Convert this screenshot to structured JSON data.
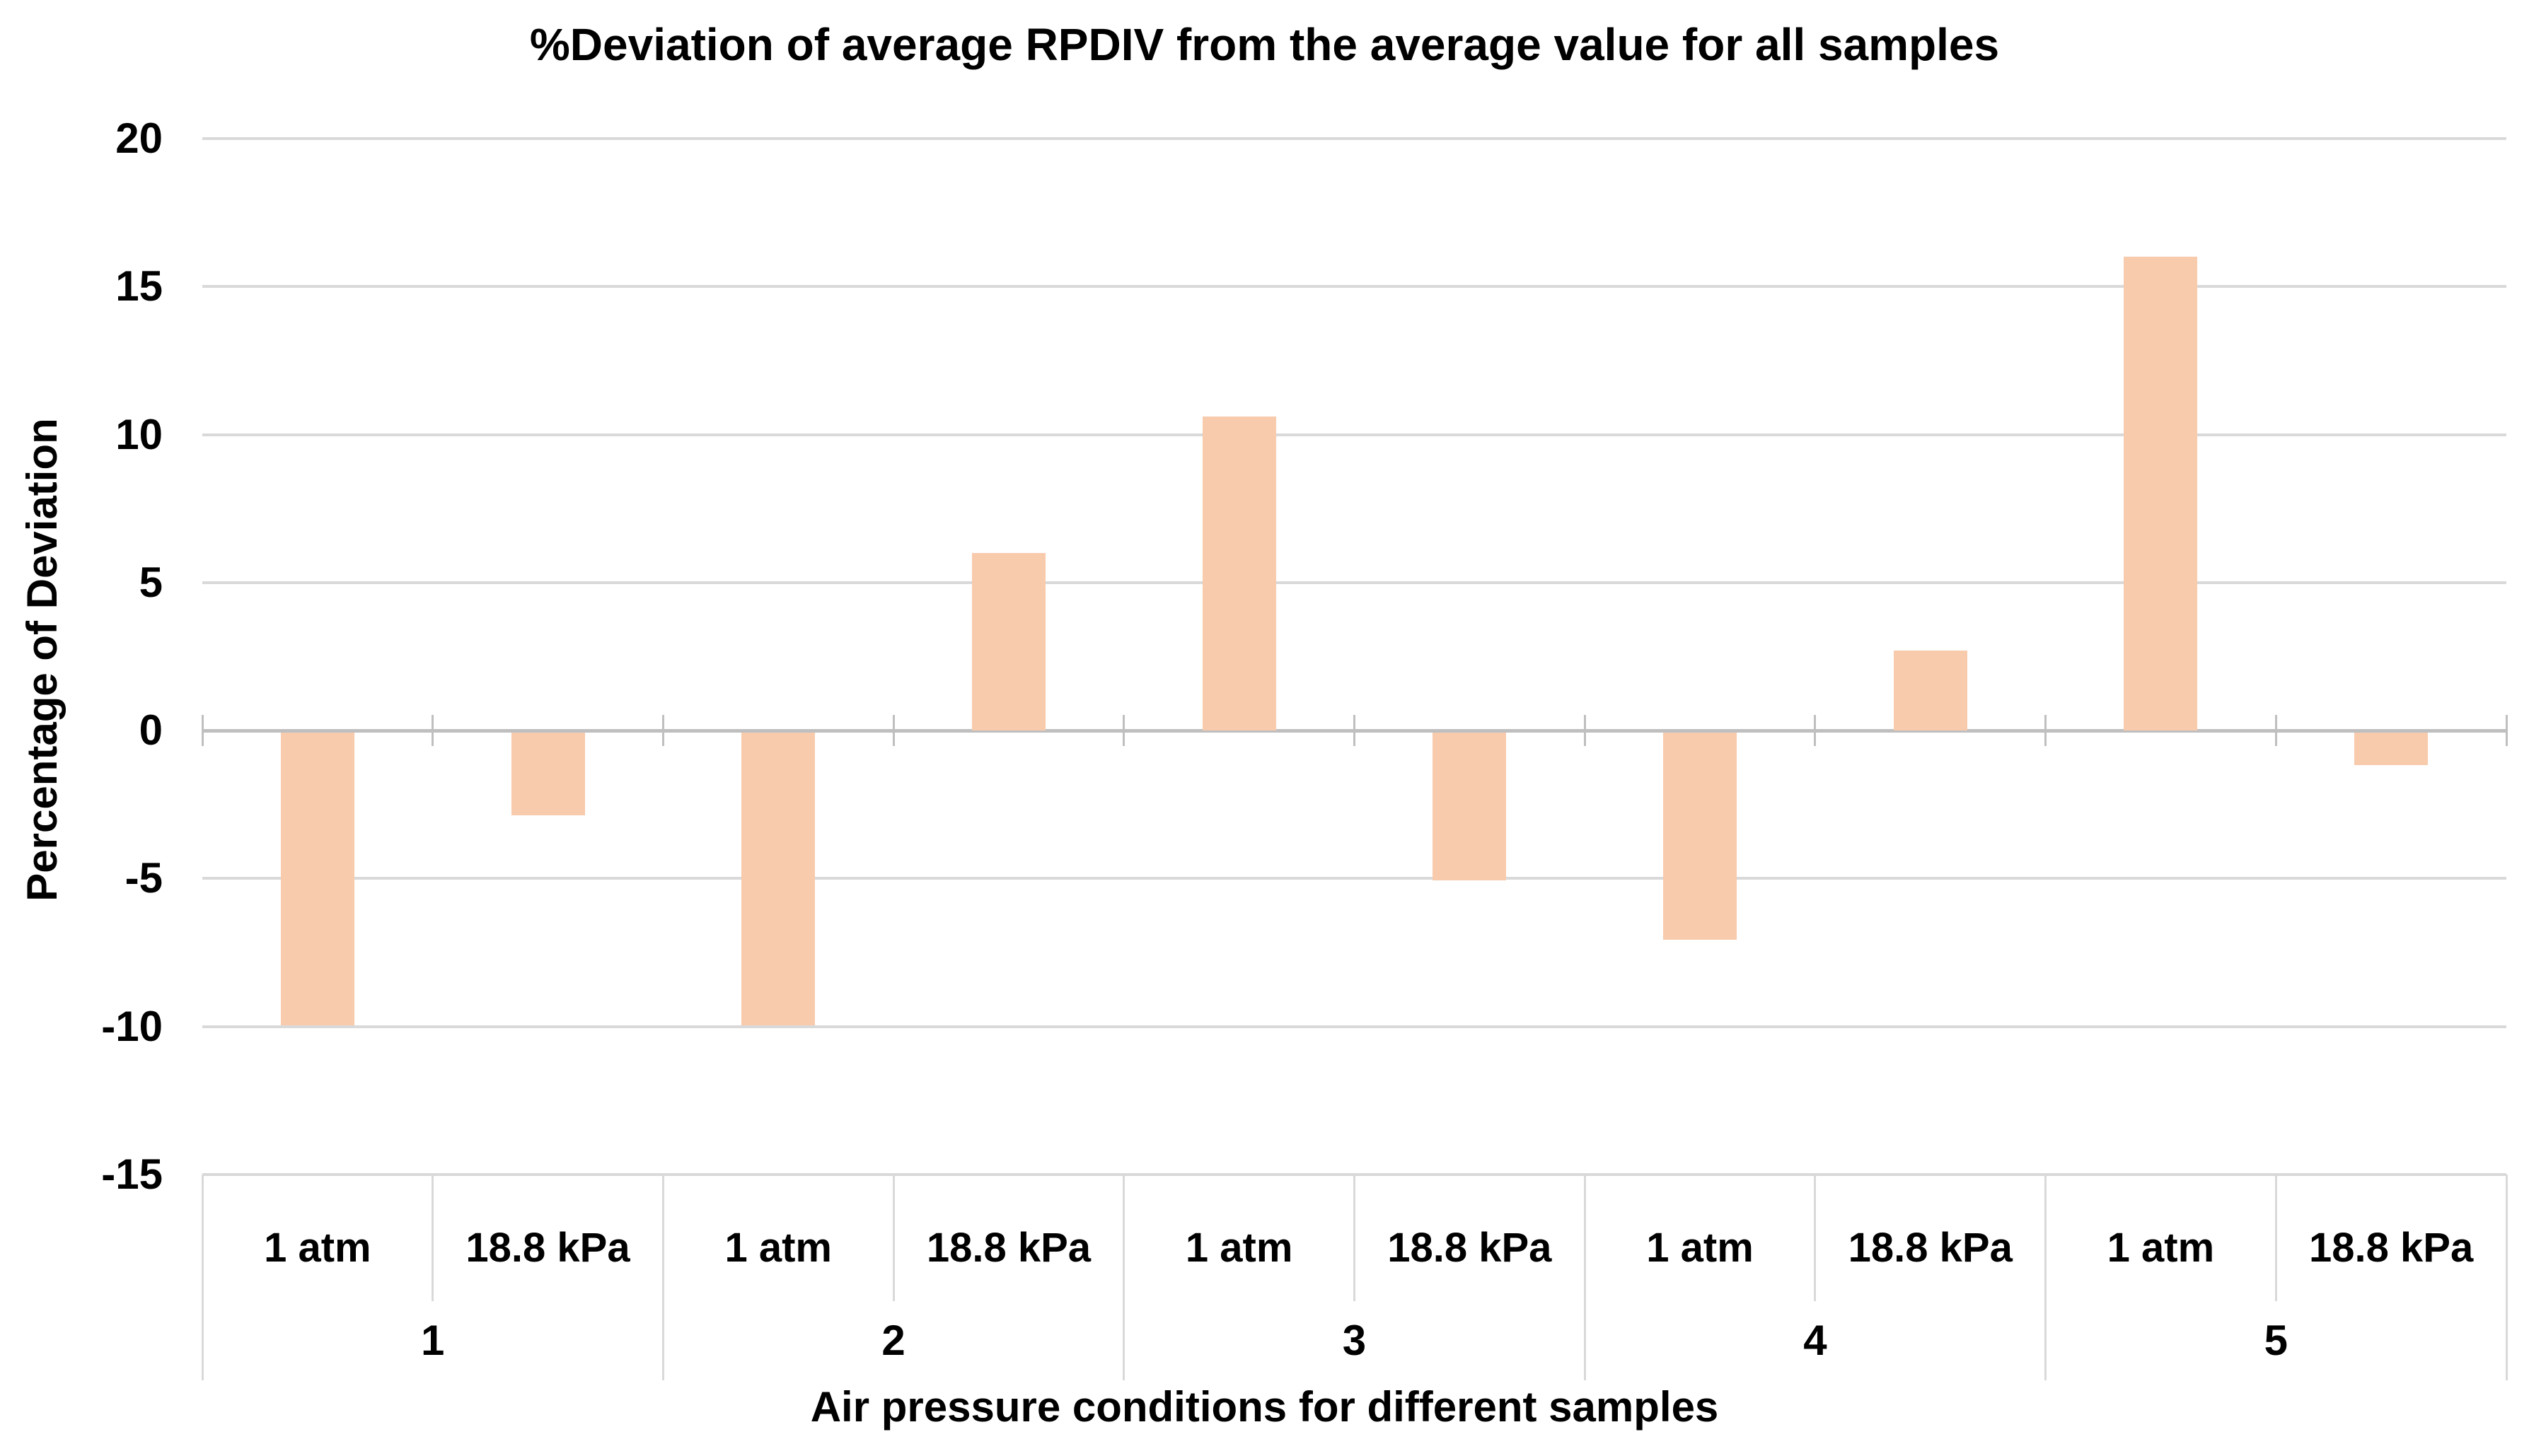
{
  "chart_data": {
    "type": "bar",
    "title": "%Deviation of average RPDIV from the average value for all samples",
    "ylabel": "Percentage of Deviation",
    "xlabel": "Air pressure conditions for different samples",
    "ylim": [
      -15,
      20
    ],
    "ytick_step": 5,
    "yticks": [
      20,
      15,
      10,
      5,
      0,
      -5,
      -10,
      -15
    ],
    "grid": true,
    "legend_position": "none",
    "categories_note": "two-level category axis: condition within sample group",
    "groups": [
      {
        "label": "1",
        "conditions": [
          "1 atm",
          "18.8 kPa"
        ],
        "values": [
          -9.9,
          -2.8
        ]
      },
      {
        "label": "2",
        "conditions": [
          "1 atm",
          "18.8 kPa"
        ],
        "values": [
          -9.9,
          6.0
        ]
      },
      {
        "label": "3",
        "conditions": [
          "1 atm",
          "18.8 kPa"
        ],
        "values": [
          10.6,
          -5.0
        ]
      },
      {
        "label": "4",
        "conditions": [
          "1 atm",
          "18.8 kPa"
        ],
        "values": [
          -7.0,
          2.7
        ]
      },
      {
        "label": "5",
        "conditions": [
          "1 atm",
          "18.8 kPa"
        ],
        "values": [
          16.0,
          -1.1
        ]
      }
    ],
    "colors": {
      "bar_fill": "#F8CBAD",
      "gridline": "#D9D9D9",
      "axis_line": "#BFBFBF",
      "text": "#000000",
      "background": "#FFFFFF"
    }
  }
}
